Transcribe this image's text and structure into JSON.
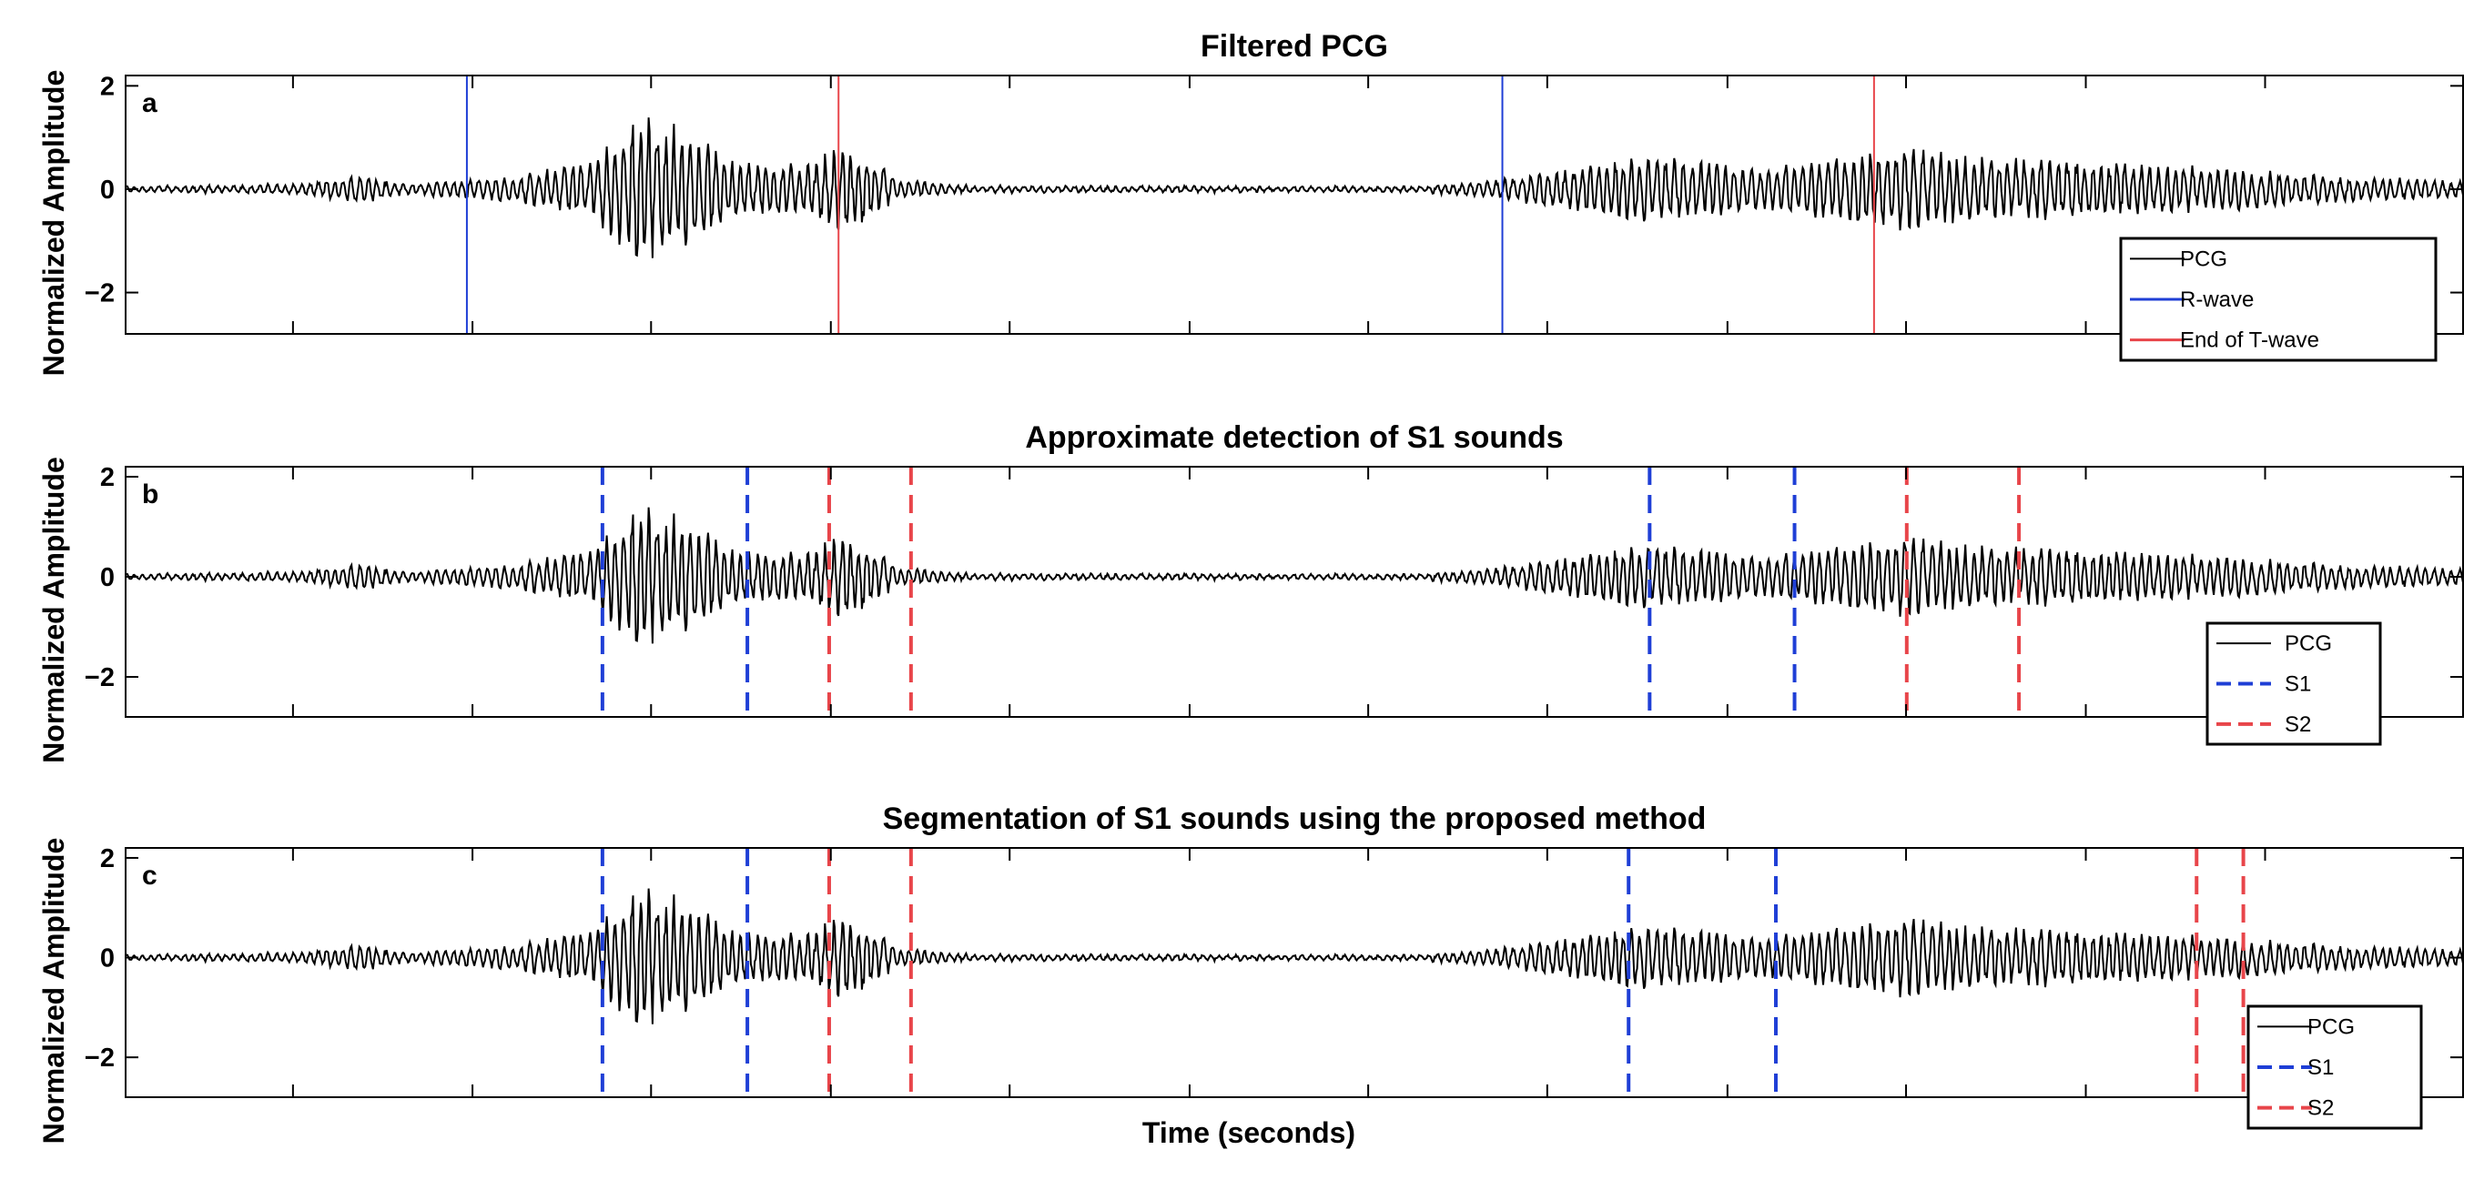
{
  "chart_data": [
    {
      "type": "line",
      "panel_label": "a",
      "title": "Filtered PCG",
      "ylabel": "Normalized Amplitude",
      "xlabel": "",
      "ylim": [
        -2.8,
        2.2
      ],
      "yticks": [
        -2,
        0,
        2
      ],
      "xlim": [
        0,
        100
      ],
      "x_tick_labels": "none",
      "grid": false,
      "legend": {
        "placement": "bottom-right",
        "entries": [
          {
            "label": "PCG",
            "color": "#000000",
            "style": "solid"
          },
          {
            "label": "R-wave",
            "color": "#1f3fd6",
            "style": "solid"
          },
          {
            "label": "End of T-wave",
            "color": "#e8454a",
            "style": "solid"
          }
        ]
      },
      "series": [
        {
          "name": "R-wave",
          "kind": "vline",
          "color": "#1f3fd6",
          "style": "solid",
          "x": [
            14.6,
            58.9
          ]
        },
        {
          "name": "End of T-wave",
          "kind": "vline",
          "color": "#e8454a",
          "style": "solid",
          "x": [
            30.5,
            74.8
          ]
        }
      ]
    },
    {
      "type": "line",
      "panel_label": "b",
      "title": "Approximate detection of S1 sounds",
      "ylabel": "Normalized Amplitude",
      "xlabel": "",
      "ylim": [
        -2.8,
        2.2
      ],
      "yticks": [
        -2,
        0,
        2
      ],
      "xlim": [
        0,
        100
      ],
      "x_tick_labels": "none",
      "grid": false,
      "legend": {
        "placement": "bottom-right",
        "entries": [
          {
            "label": "PCG",
            "color": "#000000",
            "style": "solid"
          },
          {
            "label": "S1",
            "color": "#1f3fd6",
            "style": "dashed"
          },
          {
            "label": "S2",
            "color": "#e8454a",
            "style": "dashed"
          }
        ]
      },
      "series": [
        {
          "name": "S1",
          "kind": "vline",
          "color": "#1f3fd6",
          "style": "dashed",
          "x": [
            20.4,
            26.6,
            65.2,
            71.4
          ]
        },
        {
          "name": "S2",
          "kind": "vline",
          "color": "#e8454a",
          "style": "dashed",
          "x": [
            30.1,
            33.6,
            76.2,
            81.0
          ]
        }
      ]
    },
    {
      "type": "line",
      "panel_label": "c",
      "title": "Segmentation of S1 sounds using the proposed method",
      "ylabel": "Normalized Amplitude",
      "xlabel": "Time (seconds)",
      "ylim": [
        -2.8,
        2.2
      ],
      "yticks": [
        -2,
        0,
        2
      ],
      "xlim": [
        0,
        100
      ],
      "x_tick_labels": "none",
      "grid": false,
      "legend": {
        "placement": "bottom-right",
        "entries": [
          {
            "label": "PCG",
            "color": "#000000",
            "style": "solid"
          },
          {
            "label": "S1",
            "color": "#1f3fd6",
            "style": "dashed"
          },
          {
            "label": "S2",
            "color": "#e8454a",
            "style": "dashed"
          }
        ]
      },
      "series": [
        {
          "name": "S1",
          "kind": "vline",
          "color": "#1f3fd6",
          "style": "dashed",
          "x": [
            20.4,
            26.6,
            64.3,
            70.6
          ]
        },
        {
          "name": "S2",
          "kind": "vline",
          "color": "#e8454a",
          "style": "dashed",
          "x": [
            30.1,
            33.6,
            88.6,
            90.6
          ]
        }
      ]
    }
  ],
  "pcg_trace": {
    "color": "#000000",
    "x_range": [
      0,
      100
    ],
    "note": "Same PCG waveform shown in all three panels",
    "envelope": [
      {
        "x": 0,
        "amp": 0.06
      },
      {
        "x": 7.5,
        "amp": 0.1
      },
      {
        "x": 10,
        "amp": 0.3
      },
      {
        "x": 12,
        "amp": 0.1
      },
      {
        "x": 17,
        "amp": 0.3
      },
      {
        "x": 20,
        "amp": 0.6
      },
      {
        "x": 22,
        "amp": 1.6
      },
      {
        "x": 24,
        "amp": 1.2
      },
      {
        "x": 26,
        "amp": 0.6
      },
      {
        "x": 29,
        "amp": 0.5
      },
      {
        "x": 31,
        "amp": 1.0
      },
      {
        "x": 33,
        "amp": 0.2
      },
      {
        "x": 36,
        "amp": 0.07
      },
      {
        "x": 55,
        "amp": 0.05
      },
      {
        "x": 58,
        "amp": 0.15
      },
      {
        "x": 62,
        "amp": 0.45
      },
      {
        "x": 65,
        "amp": 0.7
      },
      {
        "x": 70,
        "amp": 0.45
      },
      {
        "x": 76,
        "amp": 0.85
      },
      {
        "x": 80,
        "amp": 0.65
      },
      {
        "x": 90,
        "amp": 0.45
      },
      {
        "x": 95,
        "amp": 0.25
      },
      {
        "x": 100,
        "amp": 0.18
      }
    ]
  }
}
